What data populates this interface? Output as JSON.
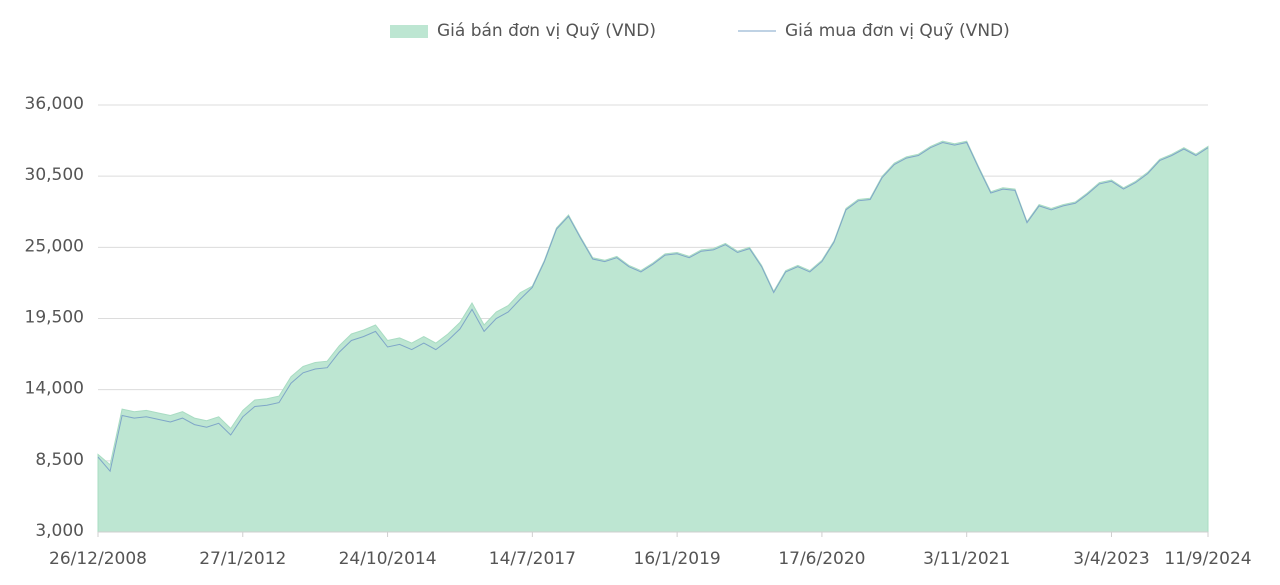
{
  "chart_data": {
    "type": "area-line",
    "categories": [
      "26/12/2008",
      null,
      null,
      null,
      null,
      null,
      null,
      null,
      null,
      null,
      null,
      null,
      "27/1/2012",
      null,
      null,
      null,
      null,
      null,
      null,
      null,
      null,
      null,
      null,
      null,
      "24/10/2014",
      null,
      null,
      null,
      null,
      null,
      null,
      null,
      null,
      null,
      null,
      null,
      "14/7/2017",
      null,
      null,
      null,
      null,
      null,
      null,
      null,
      null,
      null,
      null,
      null,
      "16/1/2019",
      null,
      null,
      null,
      null,
      null,
      null,
      null,
      null,
      null,
      null,
      null,
      "17/6/2020",
      null,
      null,
      null,
      null,
      null,
      null,
      null,
      null,
      null,
      null,
      null,
      "3/11/2021",
      null,
      null,
      null,
      null,
      null,
      null,
      null,
      null,
      null,
      null,
      null,
      "3/4/2023",
      null,
      null,
      null,
      null,
      null,
      null,
      null,
      "11/9/2024"
    ],
    "series": [
      {
        "name": "Giá bán đơn vị Quỹ (VND)",
        "color": "#bde6d2",
        "values": [
          9000,
          8200,
          12500,
          12300,
          12400,
          12200,
          12000,
          12300,
          11800,
          11600,
          11900,
          11000,
          12400,
          13200,
          13300,
          13500,
          15000,
          15800,
          16100,
          16200,
          17400,
          18300,
          18600,
          19000,
          17800,
          18000,
          17600,
          18100,
          17600,
          18300,
          19200,
          20700,
          19000,
          20000,
          20500,
          21500,
          22000,
          24000,
          26500,
          27500,
          25800,
          24200,
          24000,
          24300,
          23600,
          23200,
          23800,
          24500,
          24600,
          24300,
          24800,
          24900,
          25300,
          24700,
          25000,
          23600,
          21600,
          23200,
          23600,
          23200,
          24000,
          25500,
          28000,
          28700,
          28800,
          30500,
          31500,
          32000,
          32200,
          32800,
          33200,
          33000,
          33200,
          31200,
          29300,
          29600,
          29500,
          27000,
          28300,
          28000,
          28300,
          28500,
          29200,
          30000,
          30200,
          29600,
          30100,
          30800,
          31800,
          32200,
          32700,
          32200,
          32800
        ]
      },
      {
        "name": "Giá mua đơn vị Quỹ (VND)",
        "color": "#7fa6c8",
        "values": [
          8800,
          7700,
          12000,
          11800,
          11900,
          11700,
          11500,
          11800,
          11300,
          11100,
          11400,
          10500,
          11900,
          12700,
          12800,
          13000,
          14500,
          15300,
          15600,
          15700,
          16900,
          17800,
          18100,
          18500,
          17300,
          17500,
          17100,
          17600,
          17100,
          17800,
          18700,
          20200,
          18500,
          19500,
          20000,
          21000,
          21900,
          23900,
          26400,
          27400,
          25700,
          24100,
          23900,
          24200,
          23500,
          23100,
          23700,
          24400,
          24500,
          24200,
          24700,
          24800,
          25200,
          24600,
          24900,
          23500,
          21500,
          23100,
          23500,
          23100,
          23900,
          25400,
          27900,
          28600,
          28700,
          30400,
          31400,
          31900,
          32100,
          32700,
          33100,
          32900,
          33100,
          31100,
          29200,
          29500,
          29400,
          26900,
          28200,
          27900,
          28200,
          28400,
          29100,
          29900,
          30100,
          29500,
          30000,
          30700,
          31700,
          32100,
          32600,
          32100,
          32700
        ]
      }
    ],
    "ylim": [
      3000,
      36000
    ],
    "yticks": [
      {
        "value": 3000,
        "label": "3,000"
      },
      {
        "value": 8500,
        "label": "8,500"
      },
      {
        "value": 14000,
        "label": "14,000"
      },
      {
        "value": 19500,
        "label": "19,500"
      },
      {
        "value": 25000,
        "label": "25,000"
      },
      {
        "value": 30500,
        "label": "30,500"
      },
      {
        "value": 36000,
        "label": "36,000"
      }
    ],
    "grid": true
  }
}
